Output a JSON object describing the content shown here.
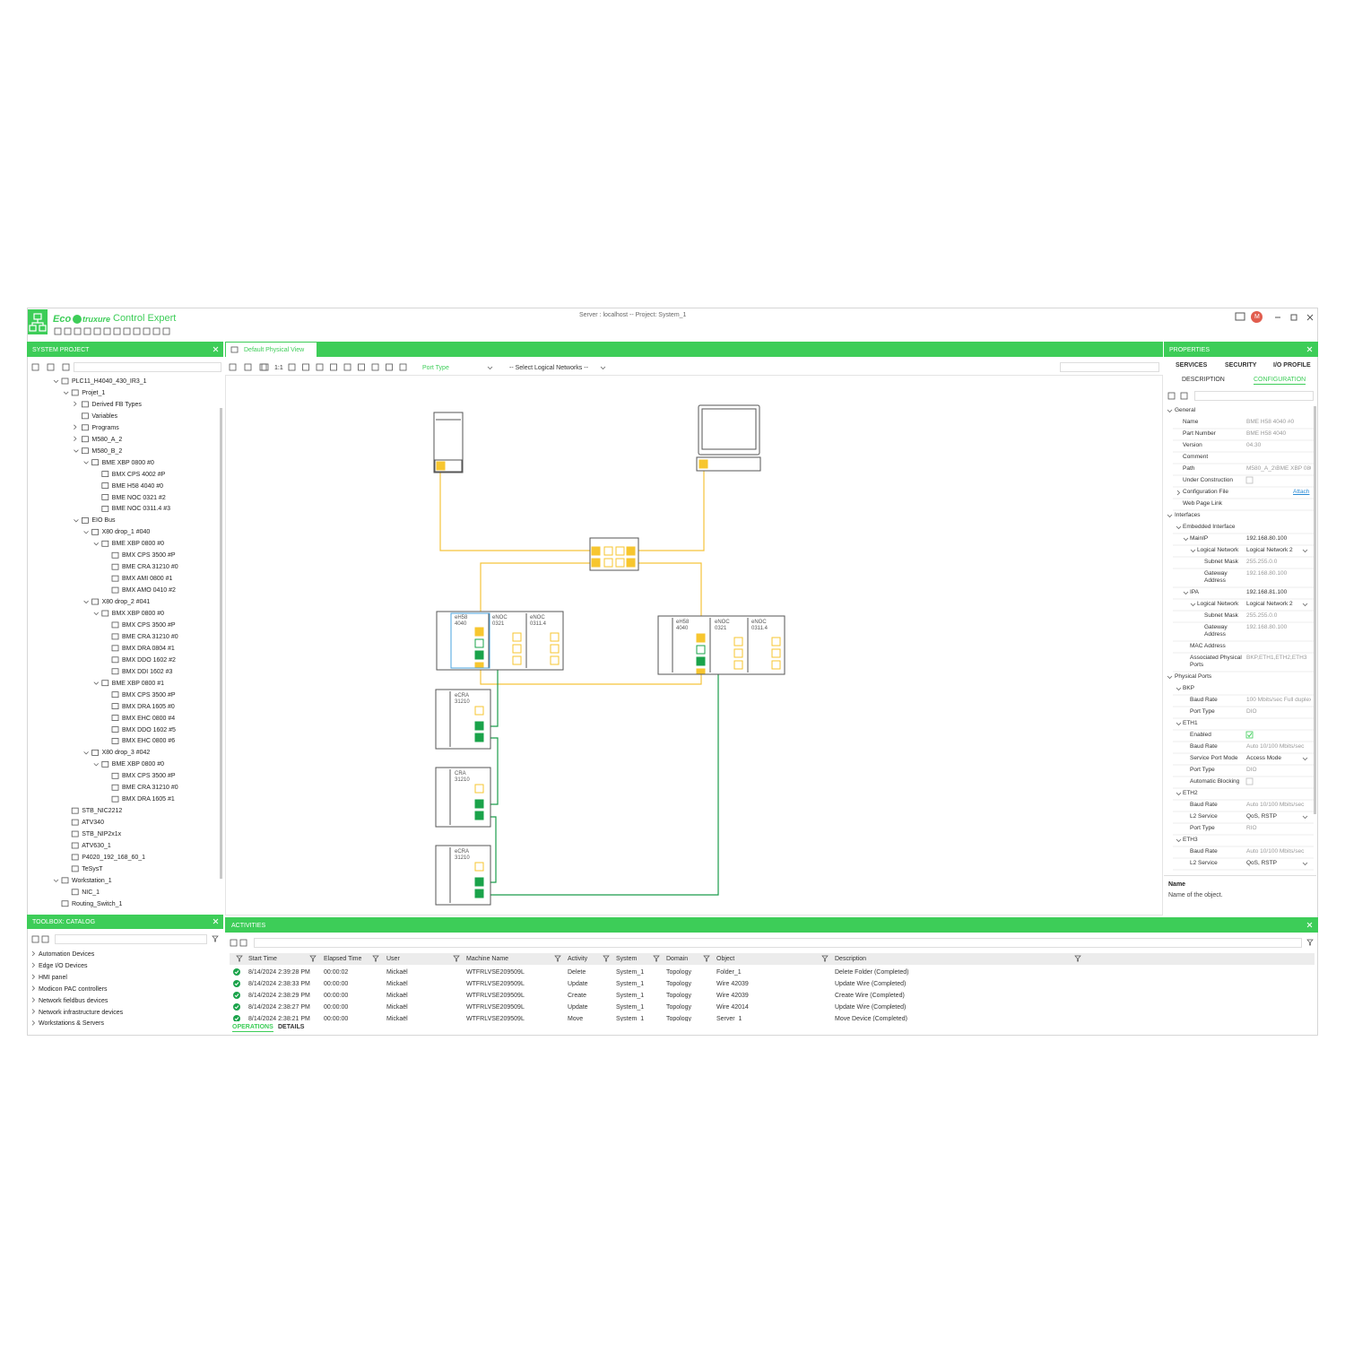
{
  "header": {
    "brand": "Eco",
    "brand_suffix": "truxure",
    "product": "Control Expert",
    "server": "Server : localhost -- Project: System_1",
    "avatar": "M"
  },
  "project_panel": {
    "title": "SYSTEM PROJECT",
    "tree": [
      {
        "label": "PLC11_H4040_430_IR3_1",
        "children": [
          {
            "label": "Projet_1",
            "children": [
              {
                "label": "Derived FB Types",
                "collapsed": true
              },
              {
                "label": "Variables"
              },
              {
                "label": "Programs",
                "collapsed": true
              },
              {
                "label": "M580_A_2",
                "collapsed": true
              },
              {
                "label": "M580_B_2",
                "children": [
                  {
                    "label": "BME XBP 0800 #0",
                    "children": [
                      {
                        "label": "BMX CPS 4002 #P"
                      },
                      {
                        "label": "BME H58 4040 #0"
                      },
                      {
                        "label": "BME NOC 0321 #2"
                      },
                      {
                        "label": "BME NOC 0311.4 #3"
                      }
                    ]
                  }
                ]
              },
              {
                "label": "EIO Bus",
                "children": [
                  {
                    "label": "X80 drop_1 #040",
                    "children": [
                      {
                        "label": "BME XBP 0800 #0",
                        "children": [
                          {
                            "label": "BMX CPS 3500 #P"
                          },
                          {
                            "label": "BME CRA 31210 #0"
                          },
                          {
                            "label": "BMX AMI 0800 #1"
                          },
                          {
                            "label": "BMX AMO 0410 #2"
                          }
                        ]
                      }
                    ]
                  },
                  {
                    "label": "X80 drop_2 #041",
                    "children": [
                      {
                        "label": "BMX XBP 0800 #0",
                        "children": [
                          {
                            "label": "BMX CPS 3500 #P"
                          },
                          {
                            "label": "BME CRA 31210 #0"
                          },
                          {
                            "label": "BMX DRA 0804 #1"
                          },
                          {
                            "label": "BMX DDO 1602 #2"
                          },
                          {
                            "label": "BMX DDI 1602 #3"
                          }
                        ]
                      },
                      {
                        "label": "BME XBP 0800 #1",
                        "children": [
                          {
                            "label": "BMX CPS 3500 #P"
                          },
                          {
                            "label": "BMX DRA 1605 #0"
                          },
                          {
                            "label": "BMX EHC 0800 #4"
                          },
                          {
                            "label": "BMX DDO 1602 #5"
                          },
                          {
                            "label": "BMX EHC 0800 #6"
                          }
                        ]
                      }
                    ]
                  },
                  {
                    "label": "X80 drop_3 #042",
                    "children": [
                      {
                        "label": "BME XBP 0800 #0",
                        "children": [
                          {
                            "label": "BMX CPS 3500 #P"
                          },
                          {
                            "label": "BME CRA 31210 #0"
                          },
                          {
                            "label": "BMX DRA 1605 #1"
                          }
                        ]
                      }
                    ]
                  }
                ]
              }
            ]
          },
          {
            "label": "STB_NIC2212"
          },
          {
            "label": "ATV340"
          },
          {
            "label": "STB_NIP2x1x"
          },
          {
            "label": "ATV630_1"
          },
          {
            "label": "P4020_192_168_60_1"
          },
          {
            "label": "TeSysT"
          }
        ]
      },
      {
        "label": "Workstation_1",
        "children": [
          {
            "label": "NIC_1"
          }
        ]
      },
      {
        "label": "Routing_Switch_1"
      }
    ]
  },
  "main_view": {
    "tab": "Default Physical View",
    "zoom": "1:1",
    "port_type": "Port Type",
    "logical_networks": "-- Select Logical Networks --"
  },
  "diagram": {
    "modules": [
      {
        "lines": [
          "eH58",
          "4040"
        ]
      },
      {
        "lines": [
          "eNOC",
          "0321"
        ]
      },
      {
        "lines": [
          "eNOC",
          "0311.4"
        ]
      },
      {
        "lines": [
          "eH58",
          "4040"
        ]
      },
      {
        "lines": [
          "eNOC",
          "0321"
        ]
      },
      {
        "lines": [
          "eNOC",
          "0311.4"
        ]
      },
      {
        "lines": [
          "eCRA",
          "31210"
        ]
      },
      {
        "lines": [
          "CRA",
          "31210"
        ]
      },
      {
        "lines": [
          "eCRA",
          "31210"
        ]
      }
    ]
  },
  "properties": {
    "title": "PROPERTIES",
    "tabs": [
      "SERVICES",
      "SECURITY",
      "I/O PROFILE"
    ],
    "subtabs": [
      "DESCRIPTION",
      "CONFIGURATION"
    ],
    "sections": [
      {
        "title": "General",
        "rows": [
          {
            "label": "Name",
            "value": "BME H58 4040 #0",
            "readonly": true
          },
          {
            "label": "Part Number",
            "value": "BME H58 4040",
            "readonly": true
          },
          {
            "label": "Version",
            "value": "04.30",
            "readonly": true
          },
          {
            "label": "Comment"
          },
          {
            "label": "Path",
            "value": "M580_A_2\\BME XBP 0800",
            "readonly": true
          },
          {
            "label": "Under Construction",
            "checkbox": false
          },
          {
            "label": "Configuration File",
            "collapsed": true,
            "link": "Attach"
          },
          {
            "label": "Web Page Link"
          }
        ]
      },
      {
        "title": "Interfaces",
        "rows": [
          {
            "label": "Embedded Interface",
            "children": [
              {
                "label": "MainIP",
                "value": "192.168.80.100",
                "children": [
                  {
                    "label": "Logical Network",
                    "value": "Logical Network 2",
                    "dropdown": true,
                    "children": [
                      {
                        "label": "Subnet Mask",
                        "value": "255.255.0.0",
                        "readonly": true
                      },
                      {
                        "label": "Gateway Address",
                        "value": "192.168.80.100",
                        "readonly": true
                      }
                    ]
                  }
                ]
              },
              {
                "label": "IPA",
                "value": "192.168.81.100",
                "children": [
                  {
                    "label": "Logical Network",
                    "value": "Logical Network 2",
                    "dropdown": true,
                    "children": [
                      {
                        "label": "Subnet Mask",
                        "value": "255.255.0.0",
                        "readonly": true
                      },
                      {
                        "label": "Gateway Address",
                        "value": "192.168.80.100",
                        "readonly": true
                      }
                    ]
                  }
                ]
              },
              {
                "label": "MAC Address"
              },
              {
                "label": "Associated Physical Ports",
                "value": "BKP,ETH1,ETH2,ETH3",
                "readonly": true
              }
            ]
          }
        ]
      },
      {
        "title": "Physical Ports",
        "rows": [
          {
            "label": "BKP",
            "children": [
              {
                "label": "Baud Rate",
                "value": "100 Mbits/sec Full duplex",
                "readonly": true
              },
              {
                "label": "Port Type",
                "value": "DIO",
                "readonly": true
              }
            ]
          },
          {
            "label": "ETH1",
            "children": [
              {
                "label": "Enabled",
                "checkbox": true
              },
              {
                "label": "Baud Rate",
                "value": "Auto 10/100 Mbits/sec",
                "readonly": true
              },
              {
                "label": "Service Port Mode",
                "value": "Access Mode",
                "dropdown": true
              },
              {
                "label": "Port Type",
                "value": "DIO",
                "readonly": true
              },
              {
                "label": "Automatic Blocking",
                "checkbox": false
              }
            ]
          },
          {
            "label": "ETH2",
            "children": [
              {
                "label": "Baud Rate",
                "value": "Auto 10/100 Mbits/sec",
                "readonly": true
              },
              {
                "label": "L2 Service",
                "value": "QoS, RSTP",
                "dropdown": true
              },
              {
                "label": "Port Type",
                "value": "RIO",
                "readonly": true
              }
            ]
          },
          {
            "label": "ETH3",
            "children": [
              {
                "label": "Baud Rate",
                "value": "Auto 10/100 Mbits/sec",
                "readonly": true
              },
              {
                "label": "L2 Service",
                "value": "QoS, RSTP",
                "dropdown": true
              }
            ]
          }
        ]
      }
    ],
    "description": {
      "title": "Name",
      "text": "Name of the object."
    }
  },
  "toolbox": {
    "title": "TOOLBOX: CATALOG",
    "items": [
      "Automation Devices",
      "Edge I/O Devices",
      "HMI panel",
      "Modicon PAC controllers",
      "Network fieldbus devices",
      "Network infrastructure devices",
      "Workstations & Servers"
    ]
  },
  "activities": {
    "title": "ACTIVITIES",
    "columns": [
      "Start Time",
      "Elapsed Time",
      "User",
      "Machine Name",
      "Activity",
      "System",
      "Domain",
      "Object",
      "Description"
    ],
    "rows": [
      [
        "8/14/2024 2:39:28 PM",
        "00:00:02",
        "Mickaël",
        "WTFRLVSE209509L",
        "Delete",
        "System_1",
        "Topology",
        "Folder_1",
        "Delete Folder (Completed)"
      ],
      [
        "8/14/2024 2:38:33 PM",
        "00:00:00",
        "Mickaël",
        "WTFRLVSE209509L",
        "Update",
        "System_1",
        "Topology",
        "Wire 42039",
        "Update Wire (Completed)"
      ],
      [
        "8/14/2024 2:38:29 PM",
        "00:00:00",
        "Mickaël",
        "WTFRLVSE209509L",
        "Create",
        "System_1",
        "Topology",
        "Wire 42039",
        "Create Wire (Completed)"
      ],
      [
        "8/14/2024 2:38:27 PM",
        "00:00:00",
        "Mickaël",
        "WTFRLVSE209509L",
        "Update",
        "System_1",
        "Topology",
        "Wire 42014",
        "Update Wire (Completed)"
      ],
      [
        "8/14/2024 2:38:21 PM",
        "00:00:00",
        "Mickaël",
        "WTFRLVSE209509L",
        "Move",
        "System_1",
        "Topology",
        "Server_1",
        "Move Device (Completed)"
      ]
    ],
    "tabs": [
      "OPERATIONS",
      "DETAILS"
    ]
  }
}
